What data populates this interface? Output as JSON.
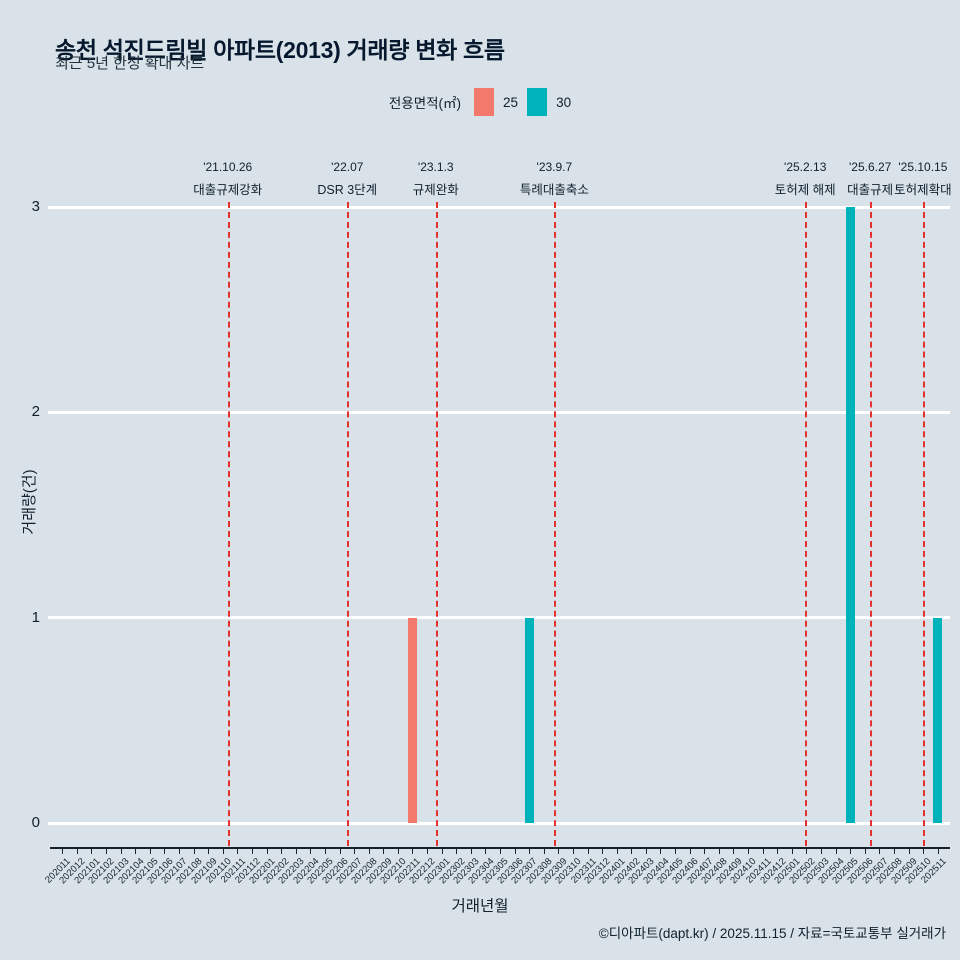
{
  "header": {
    "title": "송천 석진드림빌 아파트(2013) 거래량 변화 흐름",
    "subtitle": "최근 5년 한정 확대 차트"
  },
  "legend": {
    "label": "전용면적(㎡)",
    "items": [
      {
        "name": "25",
        "color": "#f2796c"
      },
      {
        "name": "30",
        "color": "#00b2ba"
      }
    ]
  },
  "footer": {
    "credit": "©디아파트(dapt.kr) / 2025.11.15 / 자료=국토교통부 실거래가"
  },
  "chart_data": {
    "type": "bar",
    "title": "송천 석진드림빌 아파트(2013) 거래량 변화 흐름",
    "subtitle": "최근 5년 한정 확대 차트",
    "xlabel": "거래년월",
    "ylabel": "거래량(건)",
    "ylim": [
      0,
      3
    ],
    "yticks": [
      0,
      1,
      2,
      3
    ],
    "grid": true,
    "legend_position": "top",
    "legend_title": "전용면적(㎡)",
    "categories": [
      "202011",
      "202012",
      "202101",
      "202102",
      "202103",
      "202104",
      "202105",
      "202106",
      "202107",
      "202108",
      "202109",
      "202110",
      "202111",
      "202112",
      "202201",
      "202202",
      "202203",
      "202204",
      "202205",
      "202206",
      "202207",
      "202208",
      "202209",
      "202210",
      "202211",
      "202212",
      "202301",
      "202302",
      "202303",
      "202304",
      "202305",
      "202306",
      "202307",
      "202308",
      "202309",
      "202310",
      "202311",
      "202312",
      "202401",
      "202402",
      "202403",
      "202404",
      "202405",
      "202406",
      "202407",
      "202408",
      "202409",
      "202410",
      "202411",
      "202412",
      "202501",
      "202502",
      "202503",
      "202504",
      "202505",
      "202506",
      "202507",
      "202508",
      "202509",
      "202510",
      "202511"
    ],
    "series": [
      {
        "name": "25",
        "color": "#f2796c",
        "points": [
          {
            "month": "202211",
            "value": 1
          }
        ]
      },
      {
        "name": "30",
        "color": "#00b2ba",
        "points": [
          {
            "month": "202307",
            "value": 1
          },
          {
            "month": "202505",
            "value": 3
          },
          {
            "month": "202511",
            "value": 1
          }
        ]
      }
    ],
    "events": [
      {
        "date": "'21.10.26",
        "label": "대출규제강화",
        "month": "202110",
        "day": 26
      },
      {
        "date": "'22.07",
        "label": "DSR 3단계",
        "month": "202207",
        "day": 1
      },
      {
        "date": "'23.1.3",
        "label": "규제완화",
        "month": "202301",
        "day": 3
      },
      {
        "date": "'23.9.7",
        "label": "특례대출축소",
        "month": "202309",
        "day": 7
      },
      {
        "date": "'25.2.13",
        "label": "토허제 해제",
        "month": "202502",
        "day": 13
      },
      {
        "date": "'25.6.27",
        "label": "대출규제",
        "month": "202506",
        "day": 27
      },
      {
        "date": "'25.10.15",
        "label": "토허제확대",
        "month": "202510",
        "day": 15
      }
    ]
  }
}
